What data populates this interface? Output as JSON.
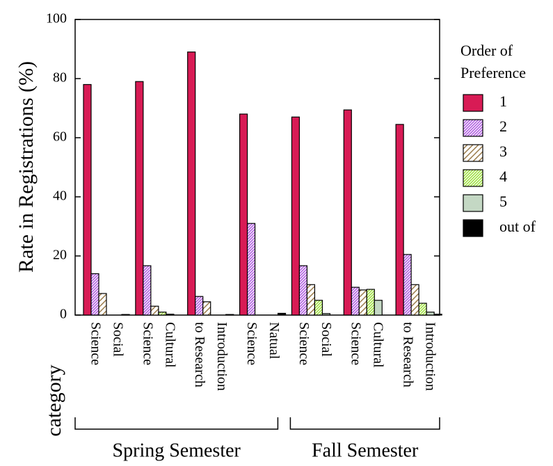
{
  "chart_data": {
    "type": "bar",
    "ylabel": "Rate in Registrations (%)",
    "xlabel": "category",
    "categories": [
      [
        "Social",
        "Science"
      ],
      [
        "Cultural",
        "Science"
      ],
      [
        "Introduction",
        "to Research"
      ],
      [
        "Natual",
        "Science"
      ],
      [
        "Social",
        "Science"
      ],
      [
        "Cultural",
        "Science"
      ],
      [
        "Introduction",
        "to Research"
      ]
    ],
    "groups": [
      {
        "name": "Spring Semester",
        "size": 4
      },
      {
        "name": "Fall Semester",
        "size": 3
      }
    ],
    "legend_title": [
      "Order of",
      "Preference"
    ],
    "series": [
      {
        "name": "1",
        "color": "#d81b55",
        "label_color": "#c81850",
        "fill_style": "solid",
        "values": [
          78,
          79,
          89,
          68,
          67,
          69.4,
          64.5
        ]
      },
      {
        "name": "2",
        "color": "#b05ee0",
        "label_color": "#9b30d8",
        "fill_style": "hatch",
        "values": [
          14,
          16.7,
          6.3,
          31,
          16.7,
          9.4,
          20.5
        ]
      },
      {
        "name": "3",
        "color": "#9a7a48",
        "label_color": "#8a6a30",
        "fill_style": "hatch",
        "values": [
          7.3,
          3,
          4.5,
          0,
          10.3,
          8.5,
          10.3
        ]
      },
      {
        "name": "4",
        "color": "#9ee040",
        "label_color": "#8ad838",
        "fill_style": "hatch",
        "values": [
          0,
          1,
          0,
          0,
          5,
          8.7,
          4
        ]
      },
      {
        "name": "5",
        "color": "#c4d8c4",
        "label_color": "#2a6a2a",
        "fill_style": "solid",
        "values": [
          0,
          0.3,
          0,
          0,
          0.5,
          5,
          1
        ]
      },
      {
        "name": "out of",
        "color": "#000000",
        "label_color": "#000000",
        "fill_style": "solid",
        "values": [
          0.2,
          0,
          0.2,
          0.6,
          0,
          0,
          0.3
        ]
      }
    ],
    "ylim": [
      0,
      100
    ],
    "yticks": [
      0,
      20,
      40,
      60,
      80,
      100
    ]
  }
}
